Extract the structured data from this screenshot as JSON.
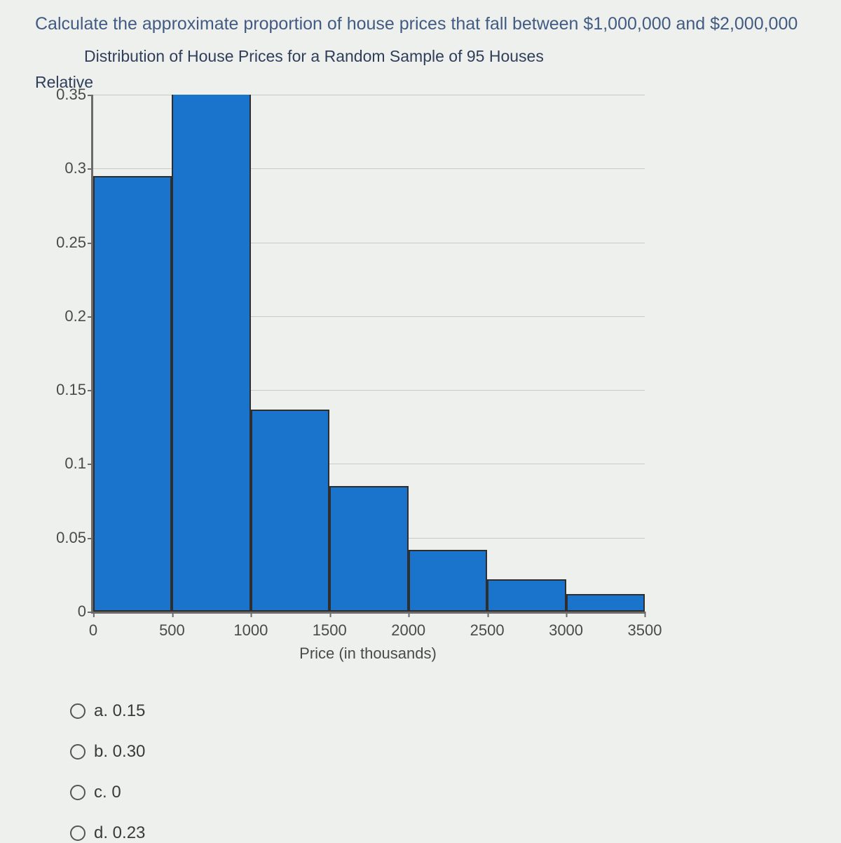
{
  "question_text": "Calculate the approximate proportion of house prices that fall between $1,000,000 and $2,000,000",
  "chart": {
    "type": "histogram",
    "title": "Distribution of House Prices for a Random Sample of 95 Houses",
    "ylabel": "Relative Frequency",
    "xlabel": "Price (in thousands)",
    "ylim": [
      0,
      0.35
    ],
    "yticks": [
      0,
      0.05,
      0.1,
      0.15,
      0.2,
      0.25,
      0.3,
      0.35
    ],
    "xlim": [
      0,
      3500
    ],
    "xticks": [
      0,
      500,
      1000,
      1500,
      2000,
      2500,
      3000,
      3500
    ],
    "bar_color": "#1b74cc",
    "bar_border_color": "#2e2e2e",
    "grid_color": "#c8cac6",
    "background_color": "#eef0ed",
    "axis_color": "#6b6b6b",
    "bin_width": 500,
    "bars": [
      {
        "x": 0,
        "y": 0.295
      },
      {
        "x": 500,
        "y": 0.358
      },
      {
        "x": 1000,
        "y": 0.137
      },
      {
        "x": 1500,
        "y": 0.085
      },
      {
        "x": 2000,
        "y": 0.042
      },
      {
        "x": 2500,
        "y": 0.022
      },
      {
        "x": 3000,
        "y": 0.012
      }
    ]
  },
  "options": [
    {
      "key": "a",
      "label": "a. 0.15"
    },
    {
      "key": "b",
      "label": "b. 0.30"
    },
    {
      "key": "c",
      "label": "c. 0"
    },
    {
      "key": "d",
      "label": "d. 0.23"
    }
  ]
}
